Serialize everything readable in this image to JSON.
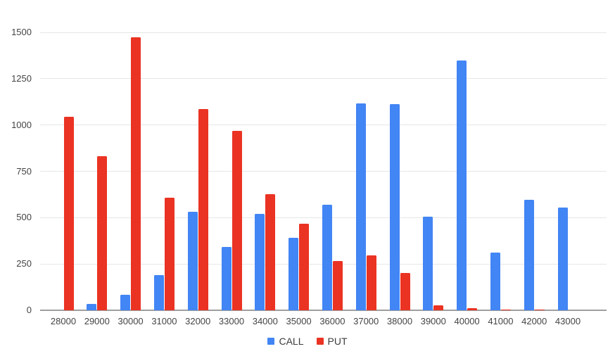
{
  "chart_data": {
    "type": "bar",
    "title": "",
    "categories": [
      "28000",
      "29000",
      "30000",
      "31000",
      "32000",
      "33000",
      "34000",
      "35000",
      "36000",
      "37000",
      "38000",
      "39000",
      "40000",
      "41000",
      "42000",
      "43000"
    ],
    "series": [
      {
        "name": "CALL",
        "color": "#4285f4",
        "values": [
          0,
          33,
          85,
          190,
          530,
          340,
          520,
          392,
          570,
          1118,
          1112,
          505,
          1350,
          310,
          598,
          555
        ]
      },
      {
        "name": "PUT",
        "color": "#ea3323",
        "values": [
          1043,
          833,
          1472,
          608,
          1085,
          968,
          627,
          466,
          267,
          297,
          202,
          28,
          13,
          3,
          3,
          0
        ]
      }
    ],
    "xlabel": "",
    "ylabel": "",
    "ylim": [
      0,
      1500
    ],
    "yticks": [
      0,
      250,
      500,
      750,
      1000,
      1250,
      1500
    ],
    "grid": true,
    "legend_position": "bottom",
    "background_color": "#ffffff",
    "gridline_color": "#e6e6e6",
    "axis_line_color": "#9e9e9e",
    "tick_label_color": "#444444",
    "legend_text_color": "#3c3c3c"
  }
}
